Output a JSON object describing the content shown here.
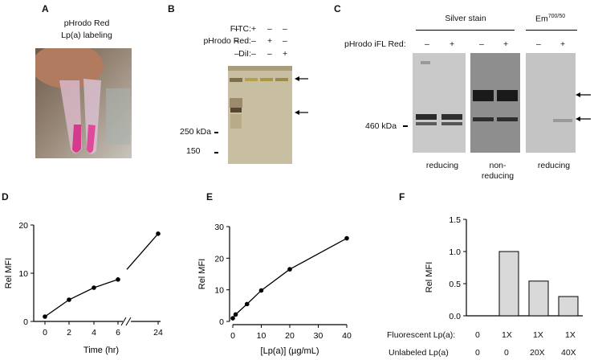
{
  "panels": {
    "A": {
      "letter": "A",
      "title_line1": "pHrodo Red",
      "title_line2": "Lp(a) labeling"
    },
    "B": {
      "letter": "B",
      "row_labels": [
        "FITC:",
        "pHrodo Red:",
        "DiI:"
      ],
      "lane_marks": [
        [
          "–",
          "+",
          "–",
          "–"
        ],
        [
          "–",
          "–",
          "+",
          "–"
        ],
        [
          "–",
          "–",
          "–",
          "+"
        ]
      ],
      "mw_labels": [
        "250 kDa",
        "150"
      ]
    },
    "C": {
      "letter": "C",
      "group1_title": "Silver stain",
      "group2_title": "Em",
      "group2_sup": "700/50",
      "row_label": "pHrodo iFL Red:",
      "marks": [
        "–",
        "+",
        "–",
        "+",
        "–",
        "+"
      ],
      "mw_label": "460 kDa",
      "bottom_labels": [
        "reducing",
        "non-",
        "reducing",
        "reducing"
      ]
    },
    "D": {
      "letter": "D"
    },
    "E": {
      "letter": "E"
    },
    "F": {
      "letter": "F",
      "row1_label": "Fluorescent Lp(a):",
      "row1_values": [
        "0",
        "1X",
        "1X",
        "1X"
      ],
      "row2_label": "Unlabeled Lp(a)",
      "row2_values": [
        "0",
        "0",
        "20X",
        "40X"
      ]
    }
  },
  "chart_data": [
    {
      "id": "D",
      "type": "line",
      "xlabel": "Time (hr)",
      "ylabel": "Rel MFI",
      "x_ticks": [
        "0",
        "2",
        "4",
        "6",
        "24"
      ],
      "y_ticks": [
        "0",
        "10",
        "20"
      ],
      "ylim": [
        0,
        20
      ],
      "broken_x_axis": true,
      "series": [
        {
          "x": [
            0,
            2,
            4,
            6,
            24
          ],
          "y": [
            1.0,
            4.5,
            7.0,
            8.7,
            18.2
          ]
        }
      ]
    },
    {
      "id": "E",
      "type": "line",
      "xlabel": "[Lp(a)] (µg/mL)",
      "ylabel": "Rel MFI",
      "x_ticks": [
        "0",
        "10",
        "20",
        "30",
        "40"
      ],
      "y_ticks": [
        "0",
        "10",
        "20",
        "30"
      ],
      "xlim": [
        0,
        40
      ],
      "ylim": [
        0,
        30
      ],
      "series": [
        {
          "x": [
            0,
            1,
            5,
            10,
            20,
            40
          ],
          "y": [
            1.0,
            2.2,
            5.5,
            9.8,
            16.5,
            26.3
          ]
        }
      ]
    },
    {
      "id": "F",
      "type": "bar",
      "ylabel": "Rel MFI",
      "y_ticks": [
        "0.0",
        "0.5",
        "1.0",
        "1.5"
      ],
      "ylim": [
        0,
        1.5
      ],
      "values": [
        0,
        1.0,
        0.54,
        0.3
      ]
    }
  ],
  "colors": {
    "bar_fill": "#d9d9d9",
    "gel_b": "#c8bfa3",
    "gel_c": "#bdbdbd"
  }
}
